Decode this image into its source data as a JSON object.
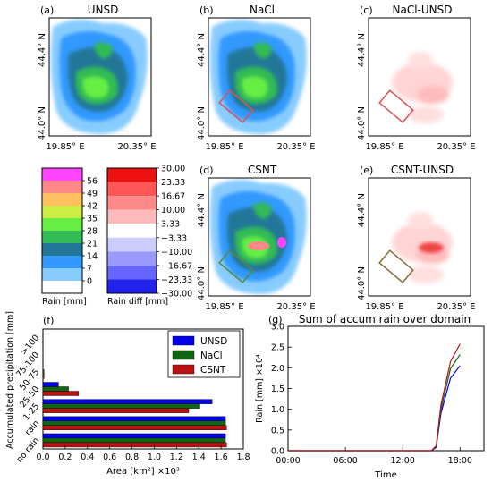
{
  "maps": [
    {
      "key": "a",
      "label": "(a)",
      "title": "UNSD",
      "kind": "rain",
      "lat_labels": [
        "44.4° N",
        "44.0° N"
      ],
      "lon_labels": [
        "19.85° E",
        "20.35° E"
      ]
    },
    {
      "key": "b",
      "label": "(b)",
      "title": "NaCl",
      "kind": "rain",
      "box_color": "#e05050",
      "lat_labels": [
        "44.4° N",
        "44.0° N"
      ],
      "lon_labels": [
        "19.85° E",
        "20.35° E"
      ]
    },
    {
      "key": "c",
      "label": "(c)",
      "title": "NaCl-UNSD",
      "kind": "diff",
      "box_color": "#e05050",
      "lat_labels": [
        "44.4° N",
        "44.0° N"
      ],
      "lon_labels": [
        "19.85° E",
        "20.35° E"
      ]
    },
    {
      "key": "d",
      "label": "(d)",
      "title": "CSNT",
      "kind": "rain",
      "box_color": "#5a8a30",
      "lat_labels": [
        "44.4° N",
        "44.0° N"
      ],
      "lon_labels": [
        "19.85° E",
        "20.35° E"
      ]
    },
    {
      "key": "e",
      "label": "(e)",
      "title": "CSNT-UNSD",
      "kind": "diff",
      "box_color": "#8a6a40",
      "lat_labels": [
        "44.4° N",
        "44.0° N"
      ],
      "lon_labels": [
        "19.85° E",
        "20.35° E"
      ]
    }
  ],
  "rain_colorbar": {
    "label": "Rain [mm]",
    "ticks": [
      "56",
      "49",
      "42",
      "35",
      "28",
      "21",
      "14",
      "7",
      "0"
    ],
    "colors": [
      "#ff44ff",
      "#ff8888",
      "#ffc060",
      "#ccee44",
      "#66ee44",
      "#33bb55",
      "#227799",
      "#3399ff",
      "#88ccff",
      "#ffffff"
    ]
  },
  "diff_colorbar": {
    "label": "Rain diff [mm]",
    "ticks": [
      "30.00",
      "23.33",
      "16.67",
      "10.00",
      "3.33",
      "−3.33",
      "−10.00",
      "−16.67",
      "−23.33",
      "−30.00"
    ],
    "colors": [
      "#ee1111",
      "#ff5555",
      "#ff8888",
      "#ffbbbb",
      "#ffffff",
      "#ccccff",
      "#9999ff",
      "#6666ff",
      "#2222ee"
    ]
  },
  "chart_data": [
    {
      "panel": "(f)",
      "type": "bar",
      "orientation": "horizontal",
      "xlabel": "Area [km²] ×10³",
      "ylabel": "Accumulated precipitation [mm]",
      "categories": [
        "no rain",
        "rain",
        "1-25",
        "25-50",
        "50-75",
        "75-100",
        ">100"
      ],
      "xlim": [
        0.0,
        1.8
      ],
      "xticks": [
        "0.0",
        "0.2",
        "0.4",
        "0.6",
        "0.8",
        "1.0",
        "1.2",
        "1.4",
        "1.6",
        "1.8"
      ],
      "legend": "top-right",
      "series": [
        {
          "name": "UNSD",
          "color": "#0000ee",
          "values": [
            1.64,
            1.64,
            1.52,
            0.14,
            0.0,
            0.0,
            0.0
          ]
        },
        {
          "name": "NaCl",
          "color": "#116611",
          "values": [
            1.64,
            1.64,
            1.41,
            0.23,
            0.01,
            0.0,
            0.0
          ]
        },
        {
          "name": "CSNT",
          "color": "#bb1111",
          "values": [
            1.65,
            1.65,
            1.31,
            0.32,
            0.01,
            0.0,
            0.0
          ]
        }
      ]
    },
    {
      "panel": "(g)",
      "type": "line",
      "title": "Sum of accum rain over domain",
      "xlabel": "Time",
      "ylabel": "Rain [mm] ×10⁴",
      "x": [
        "00:00",
        "06:00",
        "12:00",
        "14:00",
        "15:00",
        "15:30",
        "16:00",
        "17:00",
        "18:00"
      ],
      "xticks": [
        "00:00",
        "06:00",
        "12:00",
        "18:00"
      ],
      "ylim": [
        0.0,
        3.0
      ],
      "yticks": [
        "0.0",
        "0.5",
        "1.0",
        "1.5",
        "2.0",
        "2.5",
        "3.0"
      ],
      "series": [
        {
          "name": "UNSD",
          "color": "#0000ee",
          "values": [
            0.0,
            0.0,
            0.0,
            0.0,
            0.0,
            0.08,
            0.9,
            1.75,
            2.05
          ]
        },
        {
          "name": "NaCl",
          "color": "#116611",
          "values": [
            0.0,
            0.0,
            0.0,
            0.0,
            0.0,
            0.1,
            1.0,
            1.98,
            2.32
          ]
        },
        {
          "name": "CSNT",
          "color": "#bb1111",
          "values": [
            0.0,
            0.0,
            0.0,
            0.0,
            0.0,
            0.12,
            1.1,
            2.15,
            2.58
          ]
        }
      ]
    }
  ]
}
